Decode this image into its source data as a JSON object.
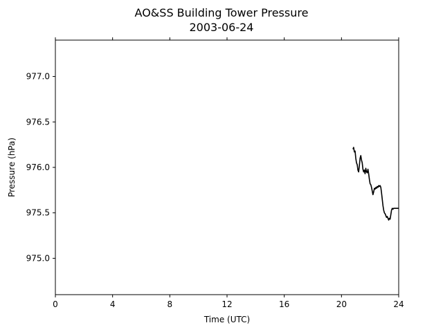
{
  "chart_data": {
    "type": "line",
    "title": "AO&SS Building Tower Pressure",
    "subtitle": "2003-06-24",
    "xlabel": "Time (UTC)",
    "ylabel": "Pressure (hPa)",
    "xlim": [
      0,
      24
    ],
    "ylim": [
      974.6,
      977.4
    ],
    "xticks": [
      0,
      4,
      8,
      12,
      16,
      20,
      24
    ],
    "xtick_labels": [
      "0",
      "4",
      "8",
      "12",
      "16",
      "20",
      "24"
    ],
    "yticks": [
      975.0,
      975.5,
      976.0,
      976.5,
      977.0
    ],
    "ytick_labels": [
      "975.0",
      "975.5",
      "976.0",
      "976.5",
      "977.0"
    ],
    "grid": false,
    "series": [
      {
        "color": "#000000",
        "x": [
          20.8,
          20.85,
          20.9,
          20.95,
          21.0,
          21.05,
          21.1,
          21.15,
          21.2,
          21.25,
          21.3,
          21.35,
          21.4,
          21.45,
          21.5,
          21.55,
          21.6,
          21.65,
          21.7,
          21.75,
          21.8,
          21.85,
          21.9,
          21.95,
          22.0,
          22.05,
          22.1,
          22.15,
          22.2,
          22.25,
          22.3,
          22.35,
          22.4,
          22.45,
          22.5,
          22.55,
          22.6,
          22.65,
          22.7,
          22.75,
          22.8,
          22.85,
          22.9,
          22.95,
          23.0,
          23.05,
          23.1,
          23.15,
          23.2,
          23.25,
          23.3,
          23.35,
          23.4,
          23.45,
          23.5,
          23.55,
          23.6,
          23.65,
          23.7,
          23.75,
          23.8,
          23.85,
          23.9,
          23.95,
          24.0
        ],
        "y": [
          976.2,
          976.22,
          976.17,
          976.18,
          976.1,
          976.05,
          976.03,
          975.97,
          975.95,
          976.02,
          976.1,
          976.13,
          976.08,
          976.05,
          975.98,
          975.95,
          975.97,
          975.93,
          975.99,
          975.95,
          975.94,
          975.98,
          975.93,
          975.87,
          975.82,
          975.81,
          975.78,
          975.74,
          975.7,
          975.73,
          975.77,
          975.76,
          975.78,
          975.77,
          975.79,
          975.78,
          975.8,
          975.79,
          975.8,
          975.78,
          975.72,
          975.65,
          975.58,
          975.53,
          975.5,
          975.49,
          975.47,
          975.45,
          975.46,
          975.44,
          975.42,
          975.44,
          975.43,
          975.48,
          975.53,
          975.55,
          975.54,
          975.55,
          975.55,
          975.55,
          975.55,
          975.55,
          975.55,
          975.55,
          975.55
        ]
      }
    ]
  }
}
